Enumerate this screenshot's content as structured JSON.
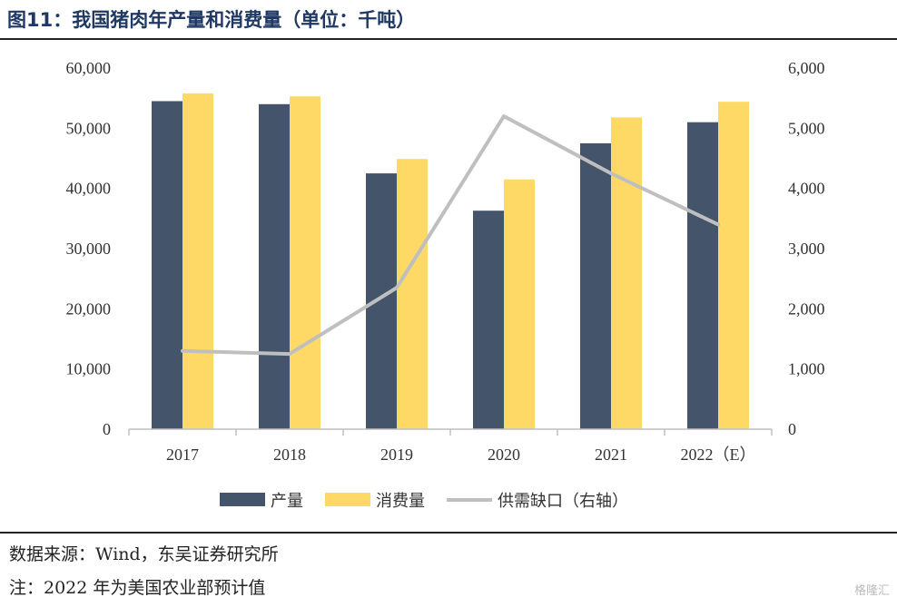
{
  "title": "图11：我国猪肉年产量和消费量（单位：千吨）",
  "source": "数据来源：Wind，东吴证券研究所",
  "note": "注：2022 年为美国农业部预计值",
  "watermark": "格隆汇",
  "chart_data": {
    "type": "bar",
    "categories": [
      "2017",
      "2018",
      "2019",
      "2020",
      "2021",
      "2022（E）"
    ],
    "series": [
      {
        "name": "产量",
        "type": "bar",
        "axis": "left",
        "color": "#44546a",
        "values": [
          54500,
          54000,
          42500,
          36300,
          47500,
          51000
        ]
      },
      {
        "name": "消费量",
        "type": "bar",
        "axis": "left",
        "color": "#ffd966",
        "values": [
          55800,
          55300,
          44900,
          41500,
          51800,
          54400
        ]
      },
      {
        "name": "供需缺口（右轴）",
        "type": "line",
        "axis": "right",
        "color": "#bfbfbf",
        "values": [
          1300,
          1250,
          2350,
          5200,
          4250,
          3400
        ]
      }
    ],
    "y_left": {
      "min": 0,
      "max": 60000,
      "ticks": [
        "0",
        "10,000",
        "20,000",
        "30,000",
        "40,000",
        "50,000",
        "60,000"
      ]
    },
    "y_right": {
      "min": 0,
      "max": 6000,
      "ticks": [
        "0",
        "1,000",
        "2,000",
        "3,000",
        "4,000",
        "5,000",
        "6,000"
      ]
    },
    "grid": false,
    "legend_position": "bottom"
  }
}
